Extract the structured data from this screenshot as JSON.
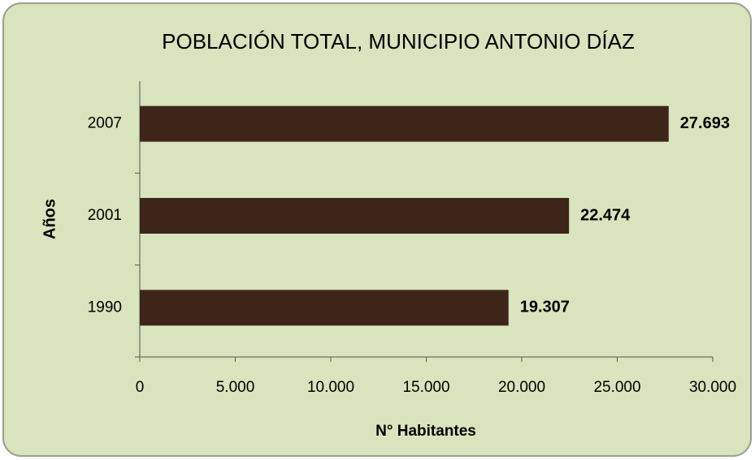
{
  "chart_data": {
    "type": "barh",
    "title": "POBLACIÓN TOTAL, MUNICIPIO ANTONIO DÍAZ",
    "xlabel": "N° Habitantes",
    "ylabel": "Años",
    "categories": [
      "1990",
      "2001",
      "2007"
    ],
    "values": [
      19307,
      22474,
      27693
    ],
    "value_labels": [
      "19.307",
      "22.474",
      "27.693"
    ],
    "color": "#3e2519",
    "xlim": [
      0,
      30000
    ],
    "xticks": [
      0,
      {
        "value": 5000,
        "label": "5.000"
      },
      {
        "value": 10000,
        "label": "10.000"
      },
      {
        "value": 15000,
        "label": "15.000"
      },
      {
        "value": 20000,
        "label": "20.000"
      },
      {
        "value": 25000,
        "label": "25.000"
      },
      {
        "value": 30000,
        "label": "30.000"
      }
    ],
    "grid": false
  }
}
